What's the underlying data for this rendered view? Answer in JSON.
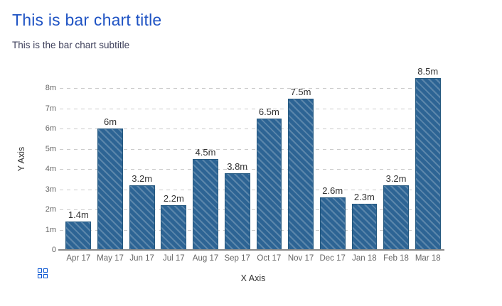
{
  "chart_data": {
    "type": "bar",
    "title": "This is bar chart title",
    "subtitle": "This is the bar chart subtitle",
    "categories": [
      "Apr 17",
      "May 17",
      "Jun 17",
      "Jul 17",
      "Aug 17",
      "Sep 17",
      "Oct 17",
      "Nov 17",
      "Dec 17",
      "Jan 18",
      "Feb 18",
      "Mar 18"
    ],
    "values": [
      1.4,
      6,
      3.2,
      2.2,
      4.5,
      3.8,
      6.5,
      7.5,
      2.6,
      2.3,
      3.2,
      8.5
    ],
    "value_labels": [
      "1.4m",
      "6m",
      "3.2m",
      "2.2m",
      "4.5m",
      "3.8m",
      "6.5m",
      "7.5m",
      "2.6m",
      "2.3m",
      "3.2m",
      "8.5m"
    ],
    "xlabel": "X Axis",
    "ylabel": "Y Axis",
    "ylim": [
      0,
      9
    ],
    "yticks": [
      0,
      1,
      2,
      3,
      4,
      5,
      6,
      7,
      8
    ],
    "ytick_labels": [
      "0",
      "1m",
      "2m",
      "3m",
      "4m",
      "5m",
      "6m",
      "7m",
      "8m"
    ],
    "grid": "horizontal-dashed",
    "legend": "none",
    "bar_style": {
      "fill": "#2d6494",
      "hatch": "diagonal-stripes",
      "stripe_color": "#5382a5",
      "border": "#24587f"
    }
  },
  "colors": {
    "title": "#2054c4",
    "subtitle": "#3f415c",
    "axis_title": "#333333",
    "tick_label": "#666666",
    "value_label": "#333333",
    "gridline": "#cbcbcb",
    "axis_line": "#8a8a8a",
    "icon_blue": "#0553d1"
  },
  "icons": {
    "grid_icon": "grid-2x2-squares"
  }
}
